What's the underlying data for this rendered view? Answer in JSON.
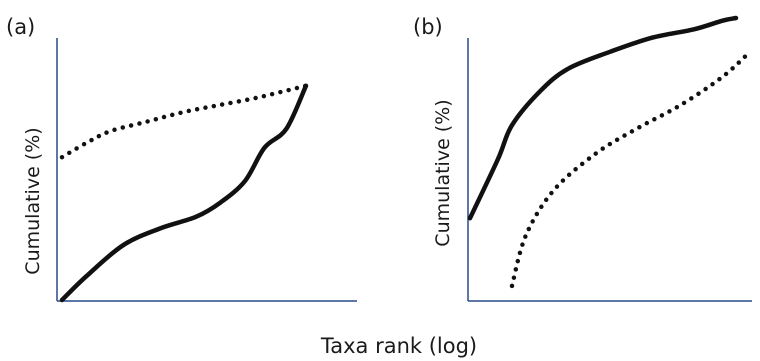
{
  "figure": {
    "xlabel": "Taxa rank (log)"
  },
  "chart_data": [
    {
      "panel": "(a)",
      "type": "line",
      "ylabel": "Cumulative (%)",
      "x_scale": "log",
      "series": [
        {
          "style": "solid",
          "x": [
            0,
            0.1,
            0.25,
            0.4,
            0.55,
            0.65,
            0.75,
            0.83,
            0.92,
            1
          ],
          "y": [
            0,
            0.1,
            0.23,
            0.3,
            0.35,
            0.41,
            0.5,
            0.64,
            0.72,
            0.9
          ]
        },
        {
          "style": "dotted",
          "x": [
            0,
            0.1,
            0.2,
            0.35,
            0.5,
            0.65,
            0.8,
            0.92,
            1
          ],
          "y": [
            0.6,
            0.66,
            0.71,
            0.75,
            0.79,
            0.82,
            0.85,
            0.88,
            0.9
          ]
        }
      ],
      "grid": false,
      "legend": "none"
    },
    {
      "panel": "(b)",
      "type": "line",
      "ylabel": "Cumulative (%)",
      "x_scale": "log",
      "series": [
        {
          "style": "solid",
          "x": [
            0,
            0.1,
            0.15,
            0.25,
            0.35,
            0.5,
            0.65,
            0.8,
            0.9,
            0.95
          ],
          "y": [
            0.29,
            0.5,
            0.62,
            0.74,
            0.82,
            0.88,
            0.93,
            0.96,
            0.99,
            1
          ]
        },
        {
          "style": "dotted",
          "x": [
            0.15,
            0.2,
            0.3,
            0.45,
            0.6,
            0.75,
            0.9,
            1
          ],
          "y": [
            0.05,
            0.23,
            0.39,
            0.52,
            0.61,
            0.69,
            0.79,
            0.88
          ]
        }
      ],
      "grid": false,
      "legend": "none"
    }
  ]
}
